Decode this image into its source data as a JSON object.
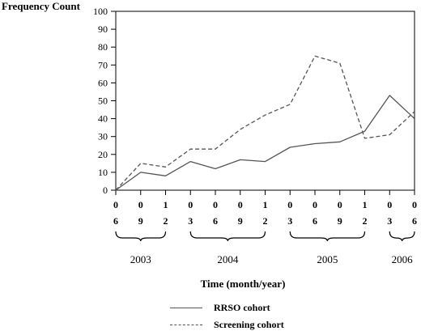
{
  "chart_data": {
    "type": "line",
    "ylabel": "Frequency Count",
    "xlabel": "Time (month/year)",
    "ylim": [
      0,
      100
    ],
    "yticks": [
      0,
      10,
      20,
      30,
      40,
      50,
      60,
      70,
      80,
      90,
      100
    ],
    "categories": [
      {
        "month": "06",
        "year": "2003"
      },
      {
        "month": "09",
        "year": "2003"
      },
      {
        "month": "12",
        "year": "2003"
      },
      {
        "month": "03",
        "year": "2004"
      },
      {
        "month": "06",
        "year": "2004"
      },
      {
        "month": "09",
        "year": "2004"
      },
      {
        "month": "12",
        "year": "2004"
      },
      {
        "month": "03",
        "year": "2005"
      },
      {
        "month": "06",
        "year": "2005"
      },
      {
        "month": "09",
        "year": "2005"
      },
      {
        "month": "12",
        "year": "2005"
      },
      {
        "month": "03",
        "year": "2006"
      },
      {
        "month": "06",
        "year": "2006"
      }
    ],
    "year_groups": [
      {
        "label": "2003",
        "from": 0,
        "to": 2
      },
      {
        "label": "2004",
        "from": 3,
        "to": 6
      },
      {
        "label": "2005",
        "from": 7,
        "to": 10
      },
      {
        "label": "2006",
        "from": 11,
        "to": 12
      }
    ],
    "series": [
      {
        "name": "RRSO cohort",
        "style": "solid",
        "color": "#555555",
        "values": [
          0,
          10,
          8,
          16,
          12,
          17,
          16,
          24,
          26,
          27,
          33,
          53,
          40
        ]
      },
      {
        "name": "Screening cohort",
        "style": "dashed",
        "color": "#555555",
        "values": [
          0,
          15,
          13,
          23,
          23,
          34,
          42,
          48,
          75,
          71,
          29,
          31,
          44
        ]
      }
    ],
    "legend_position": "bottom",
    "grid": false
  }
}
